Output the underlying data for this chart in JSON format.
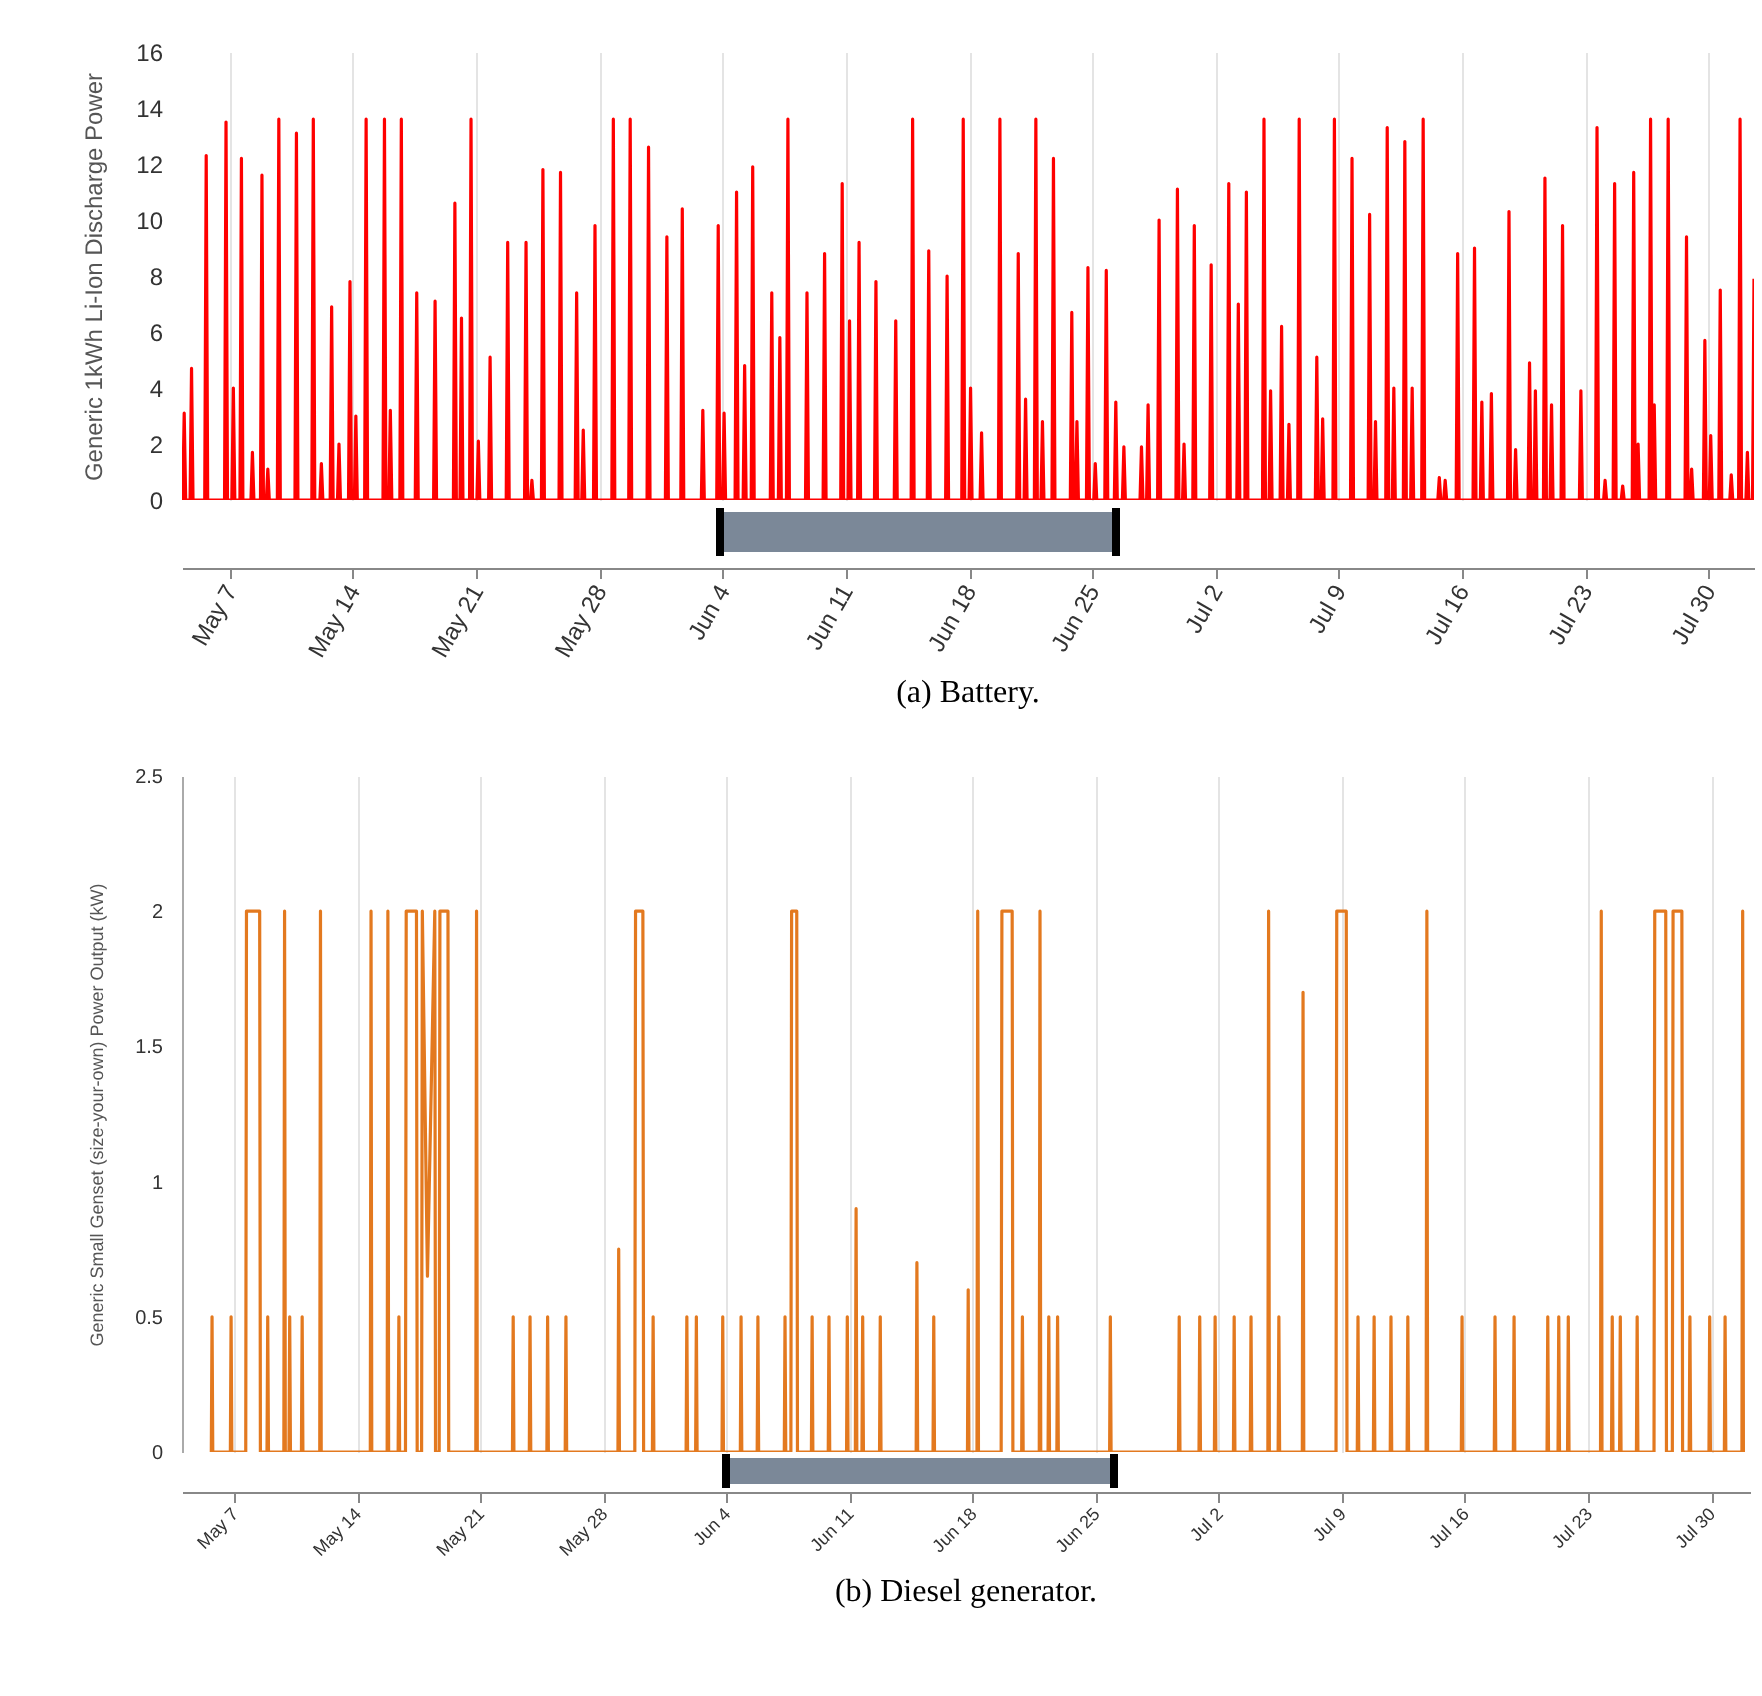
{
  "chart_data": [
    {
      "type": "line",
      "title": "(a) Battery.",
      "ylabel": "Generic 1kWh Li-Ion Discharge Power",
      "xlim": [
        "--05-04T07:00",
        "--08-01T14:00"
      ],
      "ylim": [
        0,
        16
      ],
      "yticks": [
        0,
        2,
        4,
        6,
        8,
        10,
        12,
        14,
        16
      ],
      "xticks": [
        {
          "value": "--05-07",
          "label": "May 7"
        },
        {
          "value": "--05-14",
          "label": "May 14"
        },
        {
          "value": "--05-21",
          "label": "May 21"
        },
        {
          "value": "--05-28",
          "label": "May 28"
        },
        {
          "value": "--06-04",
          "label": "Jun 4"
        },
        {
          "value": "--06-11",
          "label": "Jun 11"
        },
        {
          "value": "--06-18",
          "label": "Jun 18"
        },
        {
          "value": "--06-25",
          "label": "Jun 25"
        },
        {
          "value": "--07-02",
          "label": "Jul 2"
        },
        {
          "value": "--07-09",
          "label": "Jul 9"
        },
        {
          "value": "--07-16",
          "label": "Jul 16"
        },
        {
          "value": "--07-23",
          "label": "Jul 23"
        },
        {
          "value": "--07-30",
          "label": "Jul 30"
        }
      ],
      "grid": "x",
      "series": [
        {
          "color": "#ff0000",
          "x": [
            "--05-04T08:00",
            "--05-04T10:00",
            "--05-04T12:00",
            "--05-04T18:00",
            "--05-04T20:00",
            "--05-04T22:00",
            "--05-05T14:00",
            "--05-05T16:00",
            "--05-05T18:00",
            "--05-06T17:00",
            "--05-06T19:00",
            "--05-06T21:00",
            "--05-07T03:00",
            "--05-07T05:00",
            "--05-07T07:00",
            "--05-07T14:00",
            "--05-07T16:00",
            "--05-07T18:00",
            "--05-08T05:00",
            "--05-08T07:00",
            "--05-08T09:00",
            "--05-08T18:00",
            "--05-08T20:00",
            "--05-08T22:00",
            "--05-09T02:00",
            "--05-09T04:00",
            "--05-09T06:00",
            "--05-09T17:00",
            "--05-09T19:00",
            "--05-09T21:00",
            "--05-10T17:00",
            "--05-10T19:00",
            "--05-10T21:00",
            "--05-11T16:00",
            "--05-11T18:00",
            "--05-11T20:00",
            "--05-12T03:00",
            "--05-12T05:00",
            "--05-12T07:00",
            "--05-12T17:00",
            "--05-12T19:00",
            "--05-12T21:00",
            "--05-13T03:00",
            "--05-13T05:00",
            "--05-13T07:00",
            "--05-13T18:00",
            "--05-13T20:00",
            "--05-13T22:00",
            "--05-14T02:00",
            "--05-14T04:00",
            "--05-14T06:00",
            "--05-14T16:00",
            "--05-14T18:00",
            "--05-14T20:00",
            "--05-15T17:00",
            "--05-15T19:00",
            "--05-15T21:00",
            "--05-16T01:00",
            "--05-16T03:00",
            "--05-16T05:00",
            "--05-16T16:00",
            "--05-16T18:00",
            "--05-16T20:00",
            "--05-17T13:00",
            "--05-17T15:00",
            "--05-17T17:00",
            "--05-18T14:00",
            "--05-18T16:00",
            "--05-18T18:00",
            "--05-19T17:00",
            "--05-19T19:00",
            "--05-19T21:00",
            "--05-20T02:00",
            "--05-20T04:00",
            "--05-20T06:00",
            "--05-20T15:00",
            "--05-20T17:00",
            "--05-20T19:00",
            "--05-21T01:00",
            "--05-21T03:00",
            "--05-21T05:00",
            "--05-21T17:00",
            "--05-21T19:00",
            "--05-21T21:00",
            "--05-22T17:00",
            "--05-22T19:00",
            "--05-22T21:00",
            "--05-23T18:00",
            "--05-23T20:00",
            "--05-23T22:00",
            "--05-24T02:00",
            "--05-24T04:00",
            "--05-24T06:00",
            "--05-24T17:00",
            "--05-24T19:00",
            "--05-24T21:00",
            "--05-25T17:00",
            "--05-25T19:00",
            "--05-25T21:00",
            "--05-26T15:00",
            "--05-26T17:00",
            "--05-26T19:00",
            "--05-27T00:00",
            "--05-27T02:00",
            "--05-27T04:00",
            "--05-27T16:00",
            "--05-27T18:00",
            "--05-27T20:00",
            "--05-28T17:00",
            "--05-28T19:00",
            "--05-28T21:00",
            "--05-29T16:00",
            "--05-29T18:00",
            "--05-29T20:00",
            "--05-30T17:00",
            "--05-30T19:00",
            "--05-30T21:00",
            "--05-31T18:00",
            "--05-31T20:00",
            "--05-31T22:00",
            "--06-01T15:00",
            "--06-01T17:00",
            "--06-01T19:00",
            "--06-02T19:00",
            "--06-02T21:00",
            "--06-02T23:00",
            "--06-03T16:00",
            "--06-03T18:00",
            "--06-03T20:00",
            "--06-04T00:00",
            "--06-04T02:00",
            "--06-04T04:00",
            "--06-04T17:00",
            "--06-04T19:00",
            "--06-04T21:00",
            "--06-05T04:00",
            "--06-05T06:00",
            "--06-05T08:00",
            "--06-05T15:00",
            "--06-05T17:00",
            "--06-05T19:00",
            "--06-06T17:00",
            "--06-06T19:00",
            "--06-06T21:00",
            "--06-07T04:00",
            "--06-07T06:00",
            "--06-07T08:00",
            "--06-07T15:00",
            "--06-07T17:00",
            "--06-07T19:00",
            "--06-08T17:00",
            "--06-08T19:00",
            "--06-08T21:00",
            "--06-09T17:00",
            "--06-09T19:00",
            "--06-09T21:00",
            "--06-10T17:00",
            "--06-10T19:00",
            "--06-10T21:00",
            "--06-11T03:00",
            "--06-11T05:00",
            "--06-11T07:00",
            "--06-11T16:00",
            "--06-11T18:00",
            "--06-11T20:00",
            "--06-12T15:00",
            "--06-12T17:00",
            "--06-12T19:00",
            "--06-13T18:00",
            "--06-13T20:00",
            "--06-13T22:00",
            "--06-14T17:00",
            "--06-14T19:00",
            "--06-14T21:00",
            "--06-15T15:00",
            "--06-15T17:00",
            "--06-15T19:00",
            "--06-16T16:00",
            "--06-16T18:00",
            "--06-16T20:00",
            "--06-17T14:00",
            "--06-17T16:00",
            "--06-17T18:00",
            "--06-18T00:00",
            "--06-18T02:00",
            "--06-18T04:00",
            "--06-18T15:00",
            "--06-18T17:00",
            "--06-18T19:00",
            "--06-19T16:00",
            "--06-19T18:00",
            "--06-19T20:00",
            "--06-20T17:00",
            "--06-20T19:00",
            "--06-20T21:00",
            "--06-21T03:00",
            "--06-21T05:00",
            "--06-21T07:00",
            "--06-21T17:00",
            "--06-21T19:00",
            "--06-21T21:00",
            "--06-22T02:00",
            "--06-22T04:00",
            "--06-22T06:00",
            "--06-22T17:00",
            "--06-22T19:00",
            "--06-22T21:00",
            "--06-23T18:00",
            "--06-23T20:00",
            "--06-23T22:00",
            "--06-24T01:00",
            "--06-24T03:00",
            "--06-24T05:00",
            "--06-24T16:00",
            "--06-24T18:00",
            "--06-24T20:00",
            "--06-25T02:00",
            "--06-25T04:00",
            "--06-25T06:00",
            "--06-25T17:00",
            "--06-25T19:00",
            "--06-25T21:00",
            "--06-26T06:00",
            "--06-26T08:00",
            "--06-26T10:00",
            "--06-26T17:00",
            "--06-26T19:00",
            "--06-26T21:00",
            "--06-27T17:00",
            "--06-27T19:00",
            "--06-27T21:00",
            "--06-28T02:00",
            "--06-28T04:00",
            "--06-28T06:00",
            "--06-28T17:00",
            "--06-28T19:00",
            "--06-28T21:00",
            "--06-29T18:00",
            "--06-29T20:00",
            "--06-29T22:00",
            "--06-30T03:00",
            "--06-30T05:00",
            "--06-30T07:00",
            "--06-30T17:00",
            "--06-30T19:00",
            "--06-30T21:00",
            "--07-01T16:00",
            "--07-01T18:00",
            "--07-01T20:00",
            "--07-02T16:00",
            "--07-02T18:00",
            "--07-02T20:00",
            "--07-03T05:00",
            "--07-03T07:00",
            "--07-03T09:00",
            "--07-03T16:00",
            "--07-03T18:00",
            "--07-03T20:00",
            "--07-04T16:00",
            "--07-04T18:00",
            "--07-04T20:00",
            "--07-05T01:00",
            "--07-05T03:00",
            "--07-05T05:00",
            "--07-05T16:00",
            "--07-05T18:00",
            "--07-05T20:00",
            "--07-06T02:00",
            "--07-06T04:00",
            "--07-06T06:00",
            "--07-06T16:00",
            "--07-06T18:00",
            "--07-06T20:00",
            "--07-07T16:00",
            "--07-07T18:00",
            "--07-07T20:00",
            "--07-08T00:00",
            "--07-08T02:00",
            "--07-08T04:00",
            "--07-08T16:00",
            "--07-08T18:00",
            "--07-08T20:00",
            "--07-09T16:00",
            "--07-09T18:00",
            "--07-09T20:00",
            "--07-10T16:00",
            "--07-10T18:00",
            "--07-10T20:00",
            "--07-11T00:00",
            "--07-11T02:00",
            "--07-11T04:00",
            "--07-11T16:00",
            "--07-11T18:00",
            "--07-11T20:00",
            "--07-12T01:00",
            "--07-12T03:00",
            "--07-12T05:00",
            "--07-12T16:00",
            "--07-12T18:00",
            "--07-12T20:00",
            "--07-13T02:00",
            "--07-13T04:00",
            "--07-13T06:00",
            "--07-13T17:00",
            "--07-13T19:00",
            "--07-13T21:00",
            "--07-14T15:00",
            "--07-14T17:00",
            "--07-14T19:00",
            "--07-14T23:00",
            "--07-15T01:00",
            "--07-15T03:00",
            "--07-15T16:00",
            "--07-15T18:00",
            "--07-15T20:00",
            "--07-16T15:00",
            "--07-16T17:00",
            "--07-16T19:00",
            "--07-17T01:00",
            "--07-17T03:00",
            "--07-17T05:00",
            "--07-17T14:00",
            "--07-17T16:00",
            "--07-17T18:00",
            "--07-18T14:00",
            "--07-18T16:00",
            "--07-18T18:00",
            "--07-18T23:00",
            "--07-19T01:00",
            "--07-19T03:00",
            "--07-19T18:00",
            "--07-19T20:00",
            "--07-19T22:00",
            "--07-20T02:00",
            "--07-20T04:00",
            "--07-20T06:00",
            "--07-20T15:00",
            "--07-20T17:00",
            "--07-20T19:00",
            "--07-21T00:00",
            "--07-21T02:00",
            "--07-21T04:00",
            "--07-21T15:00",
            "--07-21T17:00",
            "--07-21T19:00",
            "--07-22T16:00",
            "--07-22T18:00",
            "--07-22T20:00",
            "--07-23T14:00",
            "--07-23T16:00",
            "--07-23T18:00",
            "--07-24T01:00",
            "--07-24T03:00",
            "--07-24T05:00",
            "--07-24T14:00",
            "--07-24T16:00",
            "--07-24T18:00",
            "--07-25T01:00",
            "--07-25T03:00",
            "--07-25T05:00",
            "--07-25T16:00",
            "--07-25T18:00",
            "--07-25T20:00",
            "--07-25T22:00",
            "--07-26T00:00",
            "--07-26T02:00",
            "--07-26T15:00",
            "--07-26T17:00",
            "--07-26T19:00",
            "--07-26T20:00",
            "--07-26T22:00",
            "--07-27T00:00",
            "--07-27T15:00",
            "--07-27T17:00",
            "--07-27T19:00",
            "--07-28T16:00",
            "--07-28T18:00",
            "--07-28T20:00",
            "--07-28T23:00",
            "--07-29T01:00",
            "--07-29T03:00",
            "--07-29T17:00",
            "--07-29T19:00",
            "--07-29T21:00",
            "--07-30T01:00",
            "--07-30T03:00",
            "--07-30T05:00",
            "--07-30T14:00",
            "--07-30T16:00",
            "--07-30T18:00",
            "--07-31T05:00",
            "--07-31T07:00",
            "--07-31T09:00",
            "--07-31T17:00",
            "--07-31T19:00",
            "--07-31T21:00",
            "--08-01T03:00",
            "--08-01T05:00",
            "--08-01T07:00",
            "--08-01T12:00",
            "--08-01T14:00"
          ],
          "values": [
            0,
            3.1,
            0,
            0,
            4.7,
            0,
            0,
            12.3,
            0,
            0,
            13.5,
            0,
            0,
            4,
            0,
            0,
            12.2,
            0,
            0,
            1.7,
            0,
            0,
            11.6,
            0,
            0,
            1.1,
            0,
            0,
            13.6,
            0,
            0,
            13.1,
            0,
            0,
            13.6,
            0,
            0,
            1.3,
            0,
            0,
            6.9,
            0,
            0,
            2,
            0,
            0,
            7.8,
            0,
            0,
            3,
            0,
            0,
            13.6,
            0,
            0,
            13.6,
            0,
            0,
            3.2,
            0,
            0,
            13.6,
            0,
            0,
            7.4,
            0,
            0,
            7.1,
            0,
            0,
            10.6,
            0,
            0,
            6.5,
            0,
            0,
            13.6,
            0,
            0,
            2.1,
            0,
            0,
            5.1,
            0,
            0,
            9.2,
            0,
            0,
            9.2,
            0,
            0,
            0.7,
            0,
            0,
            11.8,
            0,
            0,
            11.7,
            0,
            0,
            7.4,
            0,
            0,
            2.5,
            0,
            0,
            9.8,
            0,
            0,
            13.6,
            0,
            0,
            13.6,
            0,
            0,
            12.6,
            0,
            0,
            9.4,
            0,
            0,
            10.4,
            0,
            0,
            3.2,
            0,
            0,
            9.8,
            0,
            0,
            3.1,
            0,
            0,
            11,
            0,
            0,
            4.8,
            0,
            0,
            11.9,
            0,
            0,
            7.4,
            0,
            0,
            5.8,
            0,
            0,
            13.6,
            0,
            0,
            7.4,
            0,
            0,
            8.8,
            0,
            0,
            11.3,
            0,
            0,
            6.4,
            0,
            0,
            9.2,
            0,
            0,
            7.8,
            0,
            0,
            6.4,
            0,
            0,
            13.6,
            0,
            0,
            8.9,
            0,
            0,
            8,
            0,
            0,
            13.6,
            0,
            0,
            4,
            0,
            0,
            2.4,
            0,
            0,
            13.6,
            0,
            0,
            8.8,
            0,
            0,
            3.6,
            0,
            0,
            13.6,
            0,
            0,
            2.8,
            0,
            0,
            12.2,
            0,
            0,
            6.7,
            0,
            0,
            2.8,
            0,
            0,
            8.3,
            0,
            0,
            1.3,
            0,
            0,
            8.2,
            0,
            0,
            3.5,
            0,
            0,
            1.9,
            0,
            0,
            1.9,
            0,
            0,
            3.4,
            0,
            0,
            10,
            0,
            0,
            11.1,
            0,
            0,
            2,
            0,
            0,
            9.8,
            0,
            0,
            8.4,
            0,
            0,
            11.3,
            0,
            0,
            7,
            0,
            0,
            11,
            0,
            0,
            13.6,
            0,
            0,
            3.9,
            0,
            0,
            6.2,
            0,
            0,
            2.7,
            0,
            0,
            13.6,
            0,
            0,
            5.1,
            0,
            0,
            2.9,
            0,
            0,
            13.6,
            0,
            0,
            12.2,
            0,
            0,
            10.2,
            0,
            0,
            2.8,
            0,
            0,
            13.3,
            0,
            0,
            4,
            0,
            0,
            12.8,
            0,
            0,
            4,
            0,
            0,
            13.6,
            0,
            0,
            0.8,
            0,
            0,
            0.7,
            0,
            0,
            8.8,
            0,
            0,
            9,
            0,
            0,
            3.5,
            0,
            0,
            3.8,
            0,
            0,
            10.3,
            0,
            0,
            1.8,
            0,
            0,
            4.9,
            0,
            0,
            3.9,
            0,
            0,
            11.5,
            0,
            0,
            3.4,
            0,
            0,
            9.8,
            0,
            0,
            3.9,
            0,
            0,
            13.3,
            0,
            0,
            0.7,
            0,
            0,
            11.3,
            0,
            0,
            0.5,
            0,
            0,
            11.7,
            0,
            0,
            2,
            0,
            0,
            13.6,
            0,
            0,
            3.4,
            0,
            0,
            13.6,
            0,
            0,
            9.4,
            0,
            0,
            1.1,
            0,
            0,
            5.7,
            0,
            0,
            2.3,
            0,
            0,
            7.5,
            0,
            0,
            0.9,
            0,
            0,
            13.6,
            0,
            0,
            1.7,
            0,
            0,
            7.9
          ]
        }
      ]
    },
    {
      "type": "line",
      "title": "(b) Diesel generator.",
      "ylabel": "Generic Small Genset (size-your-own) Power Output (kW)",
      "xlim": [
        "--05-04T01:00",
        "--08-01T05:00"
      ],
      "ylim": [
        0,
        2.5
      ],
      "yticks": [
        0,
        0.5,
        1,
        1.5,
        2,
        2.5
      ],
      "xticks": [
        {
          "value": "--05-07",
          "label": "May 7"
        },
        {
          "value": "--05-14",
          "label": "May 14"
        },
        {
          "value": "--05-21",
          "label": "May 21"
        },
        {
          "value": "--05-28",
          "label": "May 28"
        },
        {
          "value": "--06-04",
          "label": "Jun 4"
        },
        {
          "value": "--06-11",
          "label": "Jun 11"
        },
        {
          "value": "--06-18",
          "label": "Jun 18"
        },
        {
          "value": "--06-25",
          "label": "Jun 25"
        },
        {
          "value": "--07-02",
          "label": "Jul 2"
        },
        {
          "value": "--07-09",
          "label": "Jul 9"
        },
        {
          "value": "--07-16",
          "label": "Jul 16"
        },
        {
          "value": "--07-23",
          "label": "Jul 23"
        },
        {
          "value": "--07-30",
          "label": "Jul 30"
        }
      ],
      "grid": "x",
      "series": [
        {
          "color": "#e3791f",
          "x": [
            "--05-05T17:00",
            "--05-05T18:00",
            "--05-05T19:00",
            "--05-06T19:00",
            "--05-06T20:00",
            "--05-06T21:00",
            "--05-07T16:00",
            "--05-07T17:00",
            "--05-08T11:00",
            "--05-08T12:00",
            "--05-08T21:00",
            "--05-08T22:00",
            "--05-08T23:00",
            "--05-09T20:00",
            "--05-09T21:00",
            "--05-09T22:00",
            "--05-10T03:00",
            "--05-10T04:00",
            "--05-10T05:00",
            "--05-10T20:00",
            "--05-10T21:00",
            "--05-10T22:00",
            "--05-11T21:00",
            "--05-11T22:00",
            "--05-11T23:00",
            "--05-14T18:00",
            "--05-14T19:00",
            "--05-14T20:00",
            "--05-15T17:00",
            "--05-15T18:00",
            "--05-15T19:00",
            "--05-16T08:00",
            "--05-16T09:00",
            "--05-16T10:00",
            "--05-16T18:00",
            "--05-16T19:00",
            "--05-17T09:00",
            "--05-17T10:00",
            "--05-17T16:00",
            "--05-17T17:00",
            "--05-18T00:00",
            "--05-18T10:00",
            "--05-18T11:00",
            "--05-18T16:00",
            "--05-18T17:00",
            "--05-19T04:00",
            "--05-19T05:00",
            "--05-20T18:00",
            "--05-20T19:00",
            "--05-20T20:00",
            "--05-22T20:00",
            "--05-22T21:00",
            "--05-22T22:00",
            "--05-23T19:00",
            "--05-23T20:00",
            "--05-23T21:00",
            "--05-24T19:00",
            "--05-24T20:00",
            "--05-24T21:00",
            "--05-25T20:00",
            "--05-25T21:00",
            "--05-25T22:00",
            "--05-28T20:00",
            "--05-28T21:00",
            "--05-28T22:00",
            "--05-29T19:00",
            "--05-29T20:00",
            "--05-30T06:00",
            "--05-30T07:00",
            "--05-30T19:00",
            "--05-30T20:00",
            "--05-30T21:00",
            "--06-01T17:00",
            "--06-01T18:00",
            "--06-01T19:00",
            "--06-02T06:00",
            "--06-02T07:00",
            "--06-02T08:00",
            "--06-03T18:00",
            "--06-03T19:00",
            "--06-03T20:00",
            "--06-04T19:00",
            "--06-04T20:00",
            "--06-04T21:00",
            "--06-05T18:00",
            "--06-05T19:00",
            "--06-05T20:00",
            "--06-07T07:00",
            "--06-07T08:00",
            "--06-07T09:00",
            "--06-07T16:00",
            "--06-07T17:00",
            "--06-08T00:00",
            "--06-08T01:00",
            "--06-08T20:00",
            "--06-08T21:00",
            "--06-08T22:00",
            "--06-09T19:00",
            "--06-09T20:00",
            "--06-09T21:00",
            "--06-10T20:00",
            "--06-10T21:00",
            "--06-10T22:00",
            "--06-11T08:00",
            "--06-11T09:00",
            "--06-11T10:00",
            "--06-11T17:00",
            "--06-11T18:00",
            "--06-11T19:00",
            "--06-12T17:00",
            "--06-12T18:00",
            "--06-12T19:00",
            "--06-14T19:00",
            "--06-14T20:00",
            "--06-14T21:00",
            "--06-15T18:00",
            "--06-15T19:00",
            "--06-15T20:00",
            "--06-17T17:00",
            "--06-17T18:00",
            "--06-17T19:00",
            "--06-18T06:00",
            "--06-18T07:00",
            "--06-18T08:00",
            "--06-19T15:00",
            "--06-19T16:00",
            "--06-20T06:00",
            "--06-20T07:00",
            "--06-20T19:00",
            "--06-20T20:00",
            "--06-20T21:00",
            "--06-21T19:00",
            "--06-21T20:00",
            "--06-21T21:00",
            "--06-22T07:00",
            "--06-22T08:00",
            "--06-22T09:00",
            "--06-22T19:00",
            "--06-22T20:00",
            "--06-22T21:00",
            "--06-25T19:00",
            "--06-25T20:00",
            "--06-25T21:00",
            "--06-29T17:00",
            "--06-29T18:00",
            "--06-29T19:00",
            "--06-30T21:00",
            "--06-30T22:00",
            "--06-30T23:00",
            "--07-01T18:00",
            "--07-01T19:00",
            "--07-01T20:00",
            "--07-02T20:00",
            "--07-02T21:00",
            "--07-02T22:00",
            "--07-03T19:00",
            "--07-03T20:00",
            "--07-03T21:00",
            "--07-04T19:00",
            "--07-04T20:00",
            "--07-04T21:00",
            "--07-05T09:00",
            "--07-05T10:00",
            "--07-05T11:00",
            "--07-06T18:00",
            "--07-06T19:00",
            "--07-06T20:00",
            "--07-08T16:00",
            "--07-08T17:00",
            "--07-09T06:00",
            "--07-09T07:00",
            "--07-09T21:00",
            "--07-09T22:00",
            "--07-09T23:00",
            "--07-10T19:00",
            "--07-10T20:00",
            "--07-10T21:00",
            "--07-11T18:00",
            "--07-11T19:00",
            "--07-11T20:00",
            "--07-12T17:00",
            "--07-12T18:00",
            "--07-12T19:00",
            "--07-13T19:00",
            "--07-13T20:00",
            "--07-13T21:00",
            "--07-15T19:00",
            "--07-15T20:00",
            "--07-15T21:00",
            "--07-17T16:00",
            "--07-17T17:00",
            "--07-17T18:00",
            "--07-18T18:00",
            "--07-18T19:00",
            "--07-18T20:00",
            "--07-20T16:00",
            "--07-20T17:00",
            "--07-20T18:00",
            "--07-21T07:00",
            "--07-21T08:00",
            "--07-21T09:00",
            "--07-21T20:00",
            "--07-21T21:00",
            "--07-21T22:00",
            "--07-23T17:00",
            "--07-23T18:00",
            "--07-23T19:00",
            "--07-24T08:00",
            "--07-24T09:00",
            "--07-24T10:00",
            "--07-24T19:00",
            "--07-24T20:00",
            "--07-24T21:00",
            "--07-25T18:00",
            "--07-25T19:00",
            "--07-25T20:00",
            "--07-26T18:00",
            "--07-26T19:00",
            "--07-27T10:00",
            "--07-27T11:00",
            "--07-27T19:00",
            "--07-27T20:00",
            "--07-28T08:00",
            "--07-28T09:00",
            "--07-28T18:00",
            "--07-28T19:00",
            "--07-28T20:00",
            "--07-29T21:00",
            "--07-29T22:00",
            "--07-29T23:00",
            "--07-30T18:00",
            "--07-30T19:00",
            "--07-30T20:00",
            "--07-31T18:00",
            "--07-31T19:00",
            "--07-31T20:00"
          ],
          "values": [
            0,
            0.5,
            0,
            0,
            0.5,
            0,
            0,
            2,
            2,
            0,
            0,
            0.5,
            0,
            0,
            2,
            0,
            0,
            0.5,
            0,
            0,
            0.5,
            0,
            0,
            2,
            0,
            0,
            2,
            0,
            0,
            2,
            0,
            0,
            0.5,
            0,
            0,
            2,
            2,
            0,
            0,
            2,
            0.65,
            2,
            0,
            0,
            2,
            2,
            0,
            0,
            2,
            0,
            0,
            0.5,
            0,
            0,
            0.5,
            0,
            0,
            0.5,
            0,
            0,
            0.5,
            0,
            0,
            0.75,
            0,
            0,
            2,
            2,
            0,
            0,
            0.5,
            0,
            0,
            0.5,
            0,
            0,
            0.5,
            0,
            0,
            0.5,
            0,
            0,
            0.5,
            0,
            0,
            0.5,
            0,
            0,
            0.5,
            0,
            0,
            2,
            2,
            0,
            0,
            0.5,
            0,
            0,
            0.5,
            0,
            0,
            0.5,
            0,
            0,
            0.9,
            0,
            0,
            0.5,
            0,
            0,
            0.5,
            0,
            0,
            0.7,
            0,
            0,
            0.5,
            0,
            0,
            0.6,
            0,
            0,
            2,
            0,
            0,
            2,
            2,
            0,
            0,
            0.5,
            0,
            0,
            2,
            0,
            0,
            0.5,
            0,
            0,
            0.5,
            0,
            0,
            0.5,
            0,
            0,
            0.5,
            0,
            0,
            0.5,
            0,
            0,
            0.5,
            0,
            0,
            0.5,
            0,
            0,
            0.5,
            0,
            0,
            2,
            0,
            0,
            0.5,
            0,
            0,
            1.7,
            0,
            0,
            2,
            2,
            0,
            0,
            0.5,
            0,
            0,
            0.5,
            0,
            0,
            0.5,
            0,
            0,
            0.5,
            0,
            0,
            2,
            0,
            0,
            0.5,
            0,
            0,
            0.5,
            0,
            0,
            0.5,
            0,
            0,
            0.5,
            0,
            0,
            0.5,
            0,
            0,
            0.5,
            0,
            0,
            2,
            0,
            0,
            0.5,
            0,
            0,
            0.5,
            0,
            0,
            0.5,
            0,
            0,
            2,
            2,
            0,
            0,
            2,
            2,
            0,
            0,
            0.5,
            0,
            0,
            0.5,
            0,
            0,
            0.5,
            0,
            0,
            2,
            0
          ]
        }
      ]
    }
  ]
}
